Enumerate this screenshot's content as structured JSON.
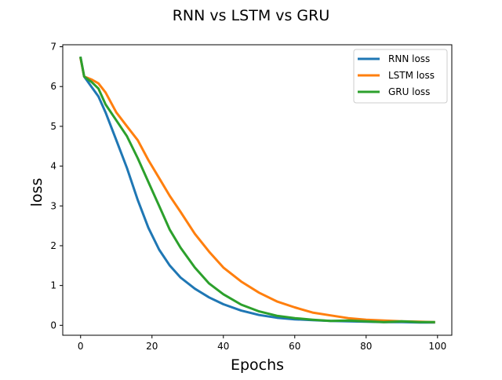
{
  "chart_data": {
    "type": "line",
    "title": "RNN vs LSTM vs GRU",
    "xlabel": "Epochs",
    "ylabel": "loss",
    "xlim": [
      -5,
      104
    ],
    "ylim": [
      -0.25,
      7.05
    ],
    "xticks": [
      0,
      20,
      40,
      60,
      80,
      100
    ],
    "yticks": [
      0,
      1,
      2,
      3,
      4,
      5,
      6,
      7
    ],
    "grid": false,
    "legend_position": "top-right",
    "series": [
      {
        "name": "RNN loss",
        "color": "#1f77b4",
        "x": [
          0,
          1,
          3,
          5,
          7,
          10,
          13,
          16,
          19,
          22,
          25,
          28,
          32,
          36,
          40,
          45,
          50,
          55,
          60,
          65,
          70,
          75,
          80,
          85,
          90,
          95,
          99
        ],
        "y": [
          6.72,
          6.25,
          6.0,
          5.75,
          5.35,
          4.65,
          3.95,
          3.15,
          2.45,
          1.9,
          1.5,
          1.2,
          0.92,
          0.7,
          0.53,
          0.37,
          0.26,
          0.19,
          0.15,
          0.13,
          0.11,
          0.1,
          0.09,
          0.08,
          0.08,
          0.07,
          0.07
        ]
      },
      {
        "name": "LSTM loss",
        "color": "#ff7f0e",
        "x": [
          0,
          1,
          3,
          5,
          7,
          10,
          13,
          16,
          19,
          22,
          25,
          28,
          32,
          36,
          40,
          45,
          50,
          55,
          60,
          65,
          70,
          75,
          80,
          85,
          90,
          95,
          99
        ],
        "y": [
          6.7,
          6.25,
          6.18,
          6.08,
          5.85,
          5.35,
          5.0,
          4.65,
          4.15,
          3.7,
          3.25,
          2.85,
          2.3,
          1.85,
          1.45,
          1.1,
          0.82,
          0.6,
          0.45,
          0.32,
          0.25,
          0.18,
          0.14,
          0.12,
          0.1,
          0.09,
          0.08
        ]
      },
      {
        "name": "GRU loss",
        "color": "#2ca02c",
        "x": [
          0,
          1,
          3,
          5,
          7,
          10,
          13,
          16,
          19,
          22,
          25,
          28,
          32,
          36,
          40,
          45,
          50,
          55,
          60,
          65,
          70,
          75,
          80,
          85,
          90,
          95,
          99
        ],
        "y": [
          6.72,
          6.25,
          6.12,
          5.95,
          5.55,
          5.15,
          4.75,
          4.2,
          3.6,
          3.0,
          2.4,
          1.95,
          1.45,
          1.05,
          0.78,
          0.52,
          0.35,
          0.24,
          0.18,
          0.14,
          0.11,
          0.12,
          0.1,
          0.08,
          0.1,
          0.08,
          0.08
        ]
      }
    ]
  }
}
